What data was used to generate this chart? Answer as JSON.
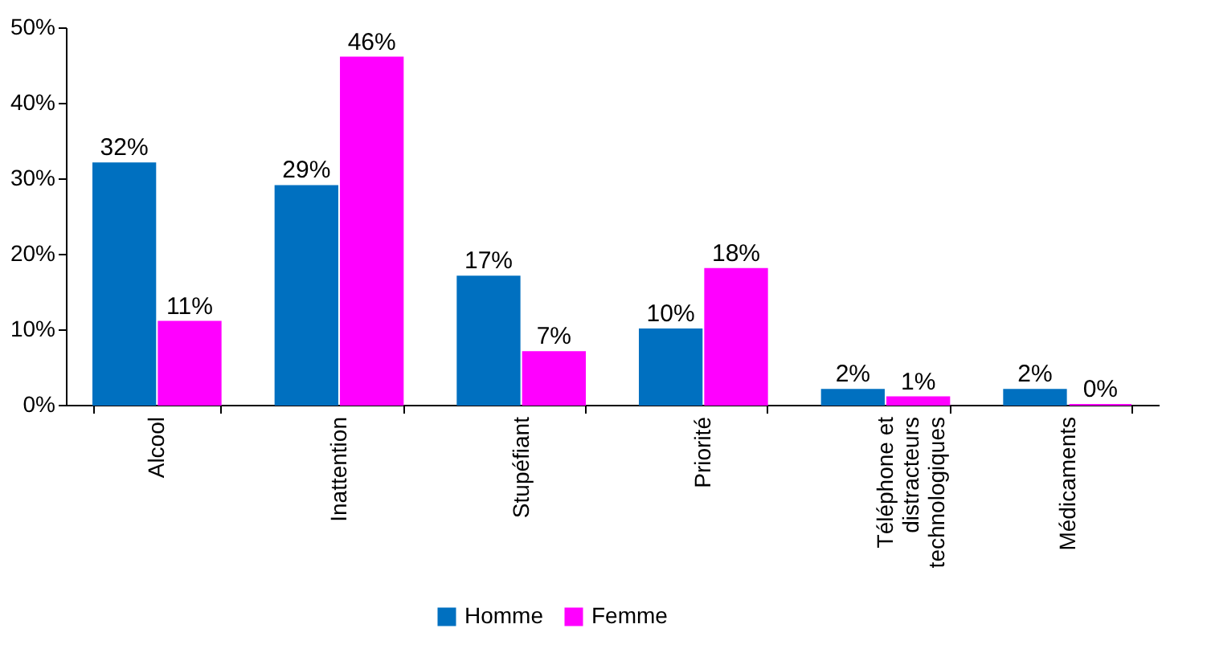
{
  "chart_data": {
    "type": "bar",
    "categories": [
      "Alcool",
      "Inattention",
      "Stupéfiant",
      "Priorité",
      "Téléphone et distracteurs technologiques",
      "Médicaments"
    ],
    "series": [
      {
        "name": "Homme",
        "color": "#0070c0",
        "values": [
          32,
          29,
          17,
          10,
          2,
          2
        ],
        "value_labels": [
          "32%",
          "29%",
          "17%",
          "10%",
          "2%",
          "2%"
        ]
      },
      {
        "name": "Femme",
        "color": "#ff00ff",
        "values": [
          11,
          46,
          7,
          18,
          1,
          0
        ],
        "value_labels": [
          "11%",
          "46%",
          "7%",
          "18%",
          "1%",
          "0%"
        ]
      }
    ],
    "ylim": [
      0,
      50
    ],
    "yticks": [
      {
        "value": 0,
        "label": "0%"
      },
      {
        "value": 10,
        "label": "10%"
      },
      {
        "value": 20,
        "label": "20%"
      },
      {
        "value": 30,
        "label": "30%"
      },
      {
        "value": 40,
        "label": "40%"
      },
      {
        "value": 50,
        "label": "50%"
      }
    ],
    "grid": false,
    "legend": "bottom"
  }
}
